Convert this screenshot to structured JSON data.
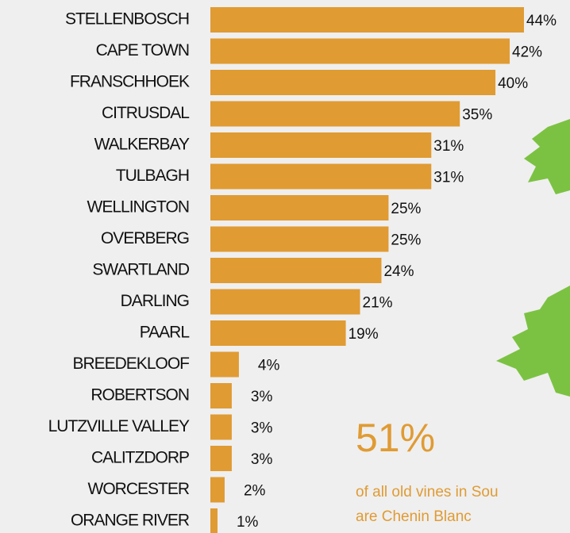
{
  "chart_data": {
    "type": "bar",
    "orientation": "horizontal",
    "color": "#e09b33",
    "categories": [
      "STELLENBOSCH",
      "CAPE TOWN",
      "FRANSCHHOEK",
      "CITRUSDAL",
      "WALKERBAY",
      "TULBAGH",
      "WELLINGTON",
      "OVERBERG",
      "SWARTLAND",
      "DARLING",
      "PAARL",
      "BREEDEKLOOF",
      "ROBERTSON",
      "LUTZVILLE VALLEY",
      "CALITZDORP",
      "WORCESTER",
      "ORANGE RIVER"
    ],
    "values": [
      44,
      42,
      40,
      35,
      31,
      31,
      25,
      25,
      24,
      21,
      19,
      4,
      3,
      3,
      3,
      2,
      1
    ],
    "value_labels": [
      "44%",
      "42%",
      "40%",
      "35%",
      "31%",
      "31%",
      "25%",
      "25%",
      "24%",
      "21%",
      "19%",
      "4%",
      "3%",
      "3%",
      "3%",
      "2%",
      "1%"
    ],
    "annotation": {
      "headline": "51%",
      "lines": [
        "of all old vines in Sou",
        "are Chenin Blanc"
      ]
    }
  }
}
